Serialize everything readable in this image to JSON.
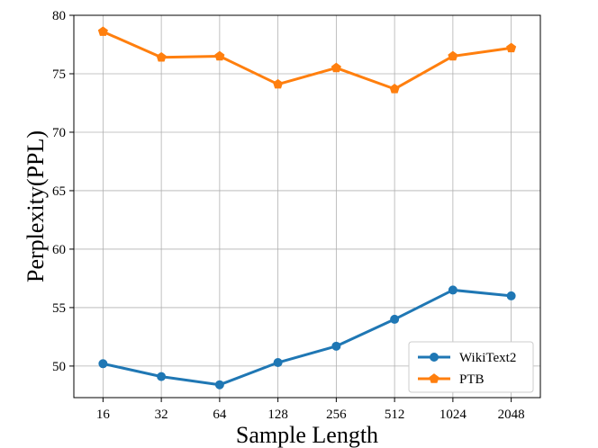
{
  "chart_data": {
    "type": "line",
    "title": "",
    "xlabel": "Sample Length",
    "ylabel": "Perplexity(PPL)",
    "categories": [
      "16",
      "32",
      "64",
      "128",
      "256",
      "512",
      "1024",
      "2048"
    ],
    "ylim": [
      47.3,
      80
    ],
    "yticks": [
      50,
      55,
      60,
      65,
      70,
      75,
      80
    ],
    "grid": true,
    "legend_position": "lower-right",
    "series": [
      {
        "name": "WikiText2",
        "color": "#1f77b4",
        "marker": "circle",
        "values": [
          50.2,
          49.1,
          48.4,
          50.3,
          51.7,
          54.0,
          56.5,
          56.0
        ]
      },
      {
        "name": "PTB",
        "color": "#ff7f0e",
        "marker": "pentagon",
        "values": [
          78.6,
          76.4,
          76.5,
          74.1,
          75.5,
          73.7,
          76.5,
          77.2
        ]
      }
    ]
  }
}
